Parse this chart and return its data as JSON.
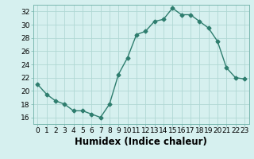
{
  "x": [
    0,
    1,
    2,
    3,
    4,
    5,
    6,
    7,
    8,
    9,
    10,
    11,
    12,
    13,
    14,
    15,
    16,
    17,
    18,
    19,
    20,
    21,
    22,
    23
  ],
  "y": [
    21,
    19.5,
    18.5,
    18,
    17,
    17,
    16.5,
    16,
    18,
    22.5,
    25,
    28.5,
    29,
    30.5,
    30.8,
    32.5,
    31.5,
    31.5,
    30.5,
    29.5,
    27.5,
    23.5,
    22,
    21.8
  ],
  "line_color": "#2e7d6e",
  "marker": "D",
  "marker_size": 2.5,
  "bg_color": "#d6f0ef",
  "grid_color": "#b0d8d4",
  "xlabel": "Humidex (Indice chaleur)",
  "xlim": [
    -0.5,
    23.5
  ],
  "ylim": [
    15.0,
    33.0
  ],
  "yticks": [
    16,
    18,
    20,
    22,
    24,
    26,
    28,
    30,
    32
  ],
  "xticks": [
    0,
    1,
    2,
    3,
    4,
    5,
    6,
    7,
    8,
    9,
    10,
    11,
    12,
    13,
    14,
    15,
    16,
    17,
    18,
    19,
    20,
    21,
    22,
    23
  ],
  "tick_label_fontsize": 6.5,
  "xlabel_fontsize": 8.5
}
